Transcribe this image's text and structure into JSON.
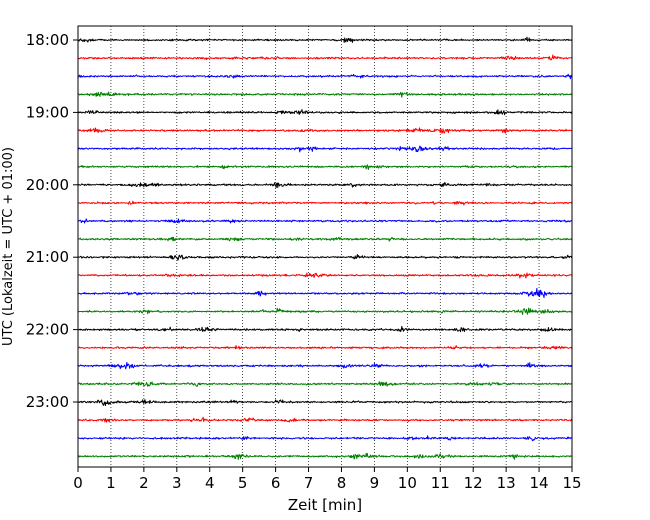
{
  "chart_data": {
    "type": "line",
    "subtype": "helicorder",
    "xlabel": "Zeit  [min]",
    "ylabel": "UTC (Lokalzeit = UTC + 01:00)",
    "xlim": [
      0,
      15
    ],
    "x_ticks": [
      0,
      1,
      2,
      3,
      4,
      5,
      6,
      7,
      8,
      9,
      10,
      11,
      12,
      13,
      14,
      15
    ],
    "y_ticks": [
      "18:00",
      "19:00",
      "20:00",
      "21:00",
      "22:00",
      "23:00"
    ],
    "row_start": "18:00",
    "row_end": "23:45",
    "minutes_per_row": 15,
    "grid": "vertical-dotted",
    "trace_colors": [
      "#000000",
      "#ff0000",
      "#0000ff",
      "#008000"
    ],
    "series": [
      {
        "row_time": "18:00"
      },
      {
        "row_time": "18:15"
      },
      {
        "row_time": "18:30"
      },
      {
        "row_time": "18:45"
      },
      {
        "row_time": "19:00"
      },
      {
        "row_time": "19:15"
      },
      {
        "row_time": "19:30"
      },
      {
        "row_time": "19:45"
      },
      {
        "row_time": "20:00"
      },
      {
        "row_time": "20:15"
      },
      {
        "row_time": "20:30"
      },
      {
        "row_time": "20:45"
      },
      {
        "row_time": "21:00"
      },
      {
        "row_time": "21:15"
      },
      {
        "row_time": "21:30"
      },
      {
        "row_time": "21:45"
      },
      {
        "row_time": "22:00"
      },
      {
        "row_time": "22:15"
      },
      {
        "row_time": "22:30"
      },
      {
        "row_time": "22:45"
      },
      {
        "row_time": "23:00"
      },
      {
        "row_time": "23:15"
      },
      {
        "row_time": "23:30"
      },
      {
        "row_time": "23:45"
      }
    ]
  }
}
